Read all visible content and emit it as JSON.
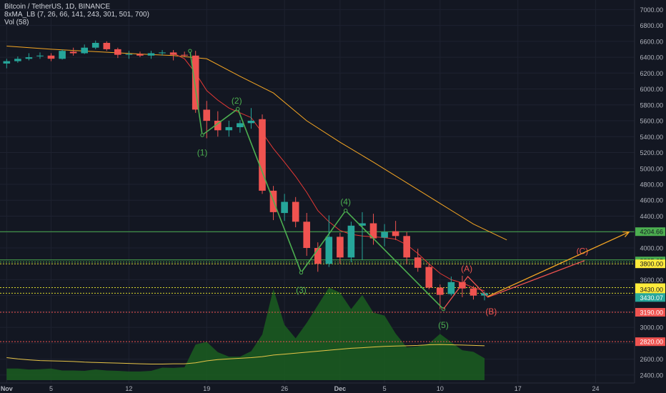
{
  "header": {
    "symbol_line": "Bitcoin / TetherUS, 1D, BINANCE",
    "ma_line": "8xMA_LB (7, 26, 66, 141, 243, 301, 501, 700)",
    "vol_line": "Vol (58)"
  },
  "colors": {
    "background": "#131722",
    "grid": "#1e2230",
    "up": "#26a69a",
    "down": "#ef5350",
    "wave": "#4caf50",
    "ma_fast": "#e53935",
    "ma_slow": "#f5a623",
    "volume_fill": "#1b5e20",
    "volume_ma": "#e8c547",
    "projection": "#f5a623"
  },
  "chart_data": {
    "type": "candlestick",
    "y_axis": {
      "range": [
        2300,
        7120
      ],
      "ticks": [
        "7000.00",
        "6800.00",
        "6600.00",
        "6400.00",
        "6200.00",
        "6000.00",
        "5800.00",
        "5600.00",
        "5400.00",
        "5200.00",
        "5000.00",
        "4800.00",
        "4600.00",
        "4400.00",
        "4200.00",
        "4000.00",
        "3800.00",
        "3600.00",
        "3400.00",
        "3200.00",
        "3000.00",
        "2800.00",
        "2600.00",
        "2400.00"
      ],
      "tick_values": [
        7000,
        6800,
        6600,
        6400,
        6200,
        6000,
        5800,
        5600,
        5400,
        5200,
        5000,
        4800,
        4600,
        4400,
        4200,
        4000,
        3800,
        3600,
        3400,
        3200,
        3000,
        2800,
        2600,
        2400
      ]
    },
    "x_axis": {
      "labels": [
        "Nov",
        "5",
        "12",
        "19",
        "26",
        "Dec",
        "5",
        "10",
        "17",
        "24"
      ],
      "label_days": [
        0,
        4,
        11,
        18,
        25,
        30,
        34,
        39,
        46,
        53
      ],
      "day_range": [
        -0.6,
        56.5
      ]
    },
    "candles": [
      {
        "d": 0,
        "o": 6320,
        "h": 6380,
        "l": 6260,
        "c": 6350
      },
      {
        "d": 1,
        "o": 6350,
        "h": 6410,
        "l": 6330,
        "c": 6380
      },
      {
        "d": 2,
        "o": 6380,
        "h": 6450,
        "l": 6360,
        "c": 6400
      },
      {
        "d": 3,
        "o": 6410,
        "h": 6460,
        "l": 6380,
        "c": 6420
      },
      {
        "d": 4,
        "o": 6420,
        "h": 6450,
        "l": 6350,
        "c": 6380
      },
      {
        "d": 5,
        "o": 6380,
        "h": 6500,
        "l": 6370,
        "c": 6480
      },
      {
        "d": 6,
        "o": 6470,
        "h": 6520,
        "l": 6420,
        "c": 6450
      },
      {
        "d": 7,
        "o": 6450,
        "h": 6560,
        "l": 6440,
        "c": 6520
      },
      {
        "d": 8,
        "o": 6520,
        "h": 6610,
        "l": 6500,
        "c": 6580
      },
      {
        "d": 9,
        "o": 6580,
        "h": 6600,
        "l": 6480,
        "c": 6500
      },
      {
        "d": 10,
        "o": 6500,
        "h": 6520,
        "l": 6390,
        "c": 6430
      },
      {
        "d": 11,
        "o": 6430,
        "h": 6480,
        "l": 6380,
        "c": 6440
      },
      {
        "d": 12,
        "o": 6440,
        "h": 6470,
        "l": 6400,
        "c": 6420
      },
      {
        "d": 13,
        "o": 6420,
        "h": 6480,
        "l": 6380,
        "c": 6450
      },
      {
        "d": 14,
        "o": 6450,
        "h": 6490,
        "l": 6420,
        "c": 6460
      },
      {
        "d": 15,
        "o": 6460,
        "h": 6490,
        "l": 6360,
        "c": 6430
      },
      {
        "d": 16,
        "o": 6430,
        "h": 6470,
        "l": 6400,
        "c": 6420
      },
      {
        "d": 17,
        "o": 6420,
        "h": 6480,
        "l": 5700,
        "c": 5740
      },
      {
        "d": 18,
        "o": 5740,
        "h": 5850,
        "l": 5380,
        "c": 5600
      },
      {
        "d": 19,
        "o": 5600,
        "h": 5720,
        "l": 5400,
        "c": 5480
      },
      {
        "d": 20,
        "o": 5480,
        "h": 5600,
        "l": 5400,
        "c": 5520
      },
      {
        "d": 21,
        "o": 5520,
        "h": 5610,
        "l": 5450,
        "c": 5570
      },
      {
        "d": 22,
        "o": 5570,
        "h": 5760,
        "l": 5500,
        "c": 5600
      },
      {
        "d": 23,
        "o": 5620,
        "h": 5680,
        "l": 4680,
        "c": 4720
      },
      {
        "d": 24,
        "o": 4720,
        "h": 4780,
        "l": 4350,
        "c": 4450
      },
      {
        "d": 25,
        "o": 4440,
        "h": 4680,
        "l": 4340,
        "c": 4580
      },
      {
        "d": 26,
        "o": 4580,
        "h": 4640,
        "l": 4260,
        "c": 4330
      },
      {
        "d": 27,
        "o": 4330,
        "h": 4440,
        "l": 3900,
        "c": 4000
      },
      {
        "d": 28,
        "o": 4000,
        "h": 4070,
        "l": 3700,
        "c": 3800
      },
      {
        "d": 29,
        "o": 3800,
        "h": 4410,
        "l": 3760,
        "c": 4140
      },
      {
        "d": 30,
        "o": 4140,
        "h": 4190,
        "l": 3800,
        "c": 3880
      },
      {
        "d": 31,
        "o": 3880,
        "h": 4330,
        "l": 3820,
        "c": 4280
      },
      {
        "d": 32,
        "o": 4280,
        "h": 4450,
        "l": 3850,
        "c": 4310
      },
      {
        "d": 33,
        "o": 4310,
        "h": 4430,
        "l": 4040,
        "c": 4120
      },
      {
        "d": 34,
        "o": 4130,
        "h": 4300,
        "l": 4020,
        "c": 4200
      },
      {
        "d": 35,
        "o": 4210,
        "h": 4340,
        "l": 4100,
        "c": 4150
      },
      {
        "d": 36,
        "o": 4150,
        "h": 4200,
        "l": 3800,
        "c": 3880
      },
      {
        "d": 37,
        "o": 3880,
        "h": 3990,
        "l": 3700,
        "c": 3750
      },
      {
        "d": 38,
        "o": 3760,
        "h": 3800,
        "l": 3480,
        "c": 3500
      },
      {
        "d": 39,
        "o": 3500,
        "h": 3540,
        "l": 3230,
        "c": 3410
      },
      {
        "d": 40,
        "o": 3420,
        "h": 3640,
        "l": 3400,
        "c": 3570
      },
      {
        "d": 41,
        "o": 3570,
        "h": 3650,
        "l": 3380,
        "c": 3490
      },
      {
        "d": 42,
        "o": 3490,
        "h": 3520,
        "l": 3350,
        "c": 3400
      },
      {
        "d": 43,
        "o": 3400,
        "h": 3450,
        "l": 3340,
        "c": 3430
      }
    ],
    "volume": {
      "scale_max": 3000,
      "values": [
        360,
        360,
        330,
        340,
        360,
        300,
        300,
        290,
        330,
        300,
        290,
        270,
        270,
        290,
        390,
        380,
        400,
        1110,
        1190,
        870,
        730,
        730,
        900,
        1420,
        2840,
        1720,
        1300,
        1780,
        2330,
        2880,
        2720,
        2210,
        2650,
        2100,
        2010,
        1450,
        1020,
        1050,
        1140,
        1440,
        1180,
        930,
        880,
        680
      ],
      "ma_values": [
        700,
        660,
        630,
        610,
        600,
        590,
        580,
        560,
        550,
        540,
        530,
        520,
        510,
        500,
        500,
        510,
        510,
        540,
        600,
        640,
        660,
        680,
        700,
        730,
        780,
        810,
        840,
        870,
        900,
        930,
        960,
        990,
        1010,
        1030,
        1050,
        1060,
        1070,
        1080,
        1100,
        1110,
        1100,
        1090,
        1080,
        1070
      ]
    },
    "ma_fast": [
      {
        "d": 15,
        "v": 6450
      },
      {
        "d": 16,
        "v": 6380
      },
      {
        "d": 17,
        "v": 6200
      },
      {
        "d": 18,
        "v": 5980
      },
      {
        "d": 19,
        "v": 5860
      },
      {
        "d": 20,
        "v": 5760
      },
      {
        "d": 21,
        "v": 5700
      },
      {
        "d": 22,
        "v": 5640
      },
      {
        "d": 23,
        "v": 5450
      },
      {
        "d": 24,
        "v": 5250
      },
      {
        "d": 25,
        "v": 5080
      },
      {
        "d": 26,
        "v": 4900
      },
      {
        "d": 27,
        "v": 4700
      },
      {
        "d": 28,
        "v": 4470
      },
      {
        "d": 29,
        "v": 4330
      },
      {
        "d": 30,
        "v": 4220
      },
      {
        "d": 31,
        "v": 4170
      },
      {
        "d": 32,
        "v": 4150
      },
      {
        "d": 33,
        "v": 4140
      },
      {
        "d": 34,
        "v": 4130
      },
      {
        "d": 35,
        "v": 4110
      },
      {
        "d": 36,
        "v": 4040
      },
      {
        "d": 37,
        "v": 3930
      },
      {
        "d": 38,
        "v": 3800
      },
      {
        "d": 39,
        "v": 3680
      },
      {
        "d": 40,
        "v": 3600
      },
      {
        "d": 41,
        "v": 3560
      },
      {
        "d": 42,
        "v": 3500
      },
      {
        "d": 43,
        "v": 3460
      }
    ],
    "ma_slow": [
      {
        "d": 0,
        "v": 6540
      },
      {
        "d": 4,
        "v": 6500
      },
      {
        "d": 8,
        "v": 6470
      },
      {
        "d": 12,
        "v": 6440
      },
      {
        "d": 15,
        "v": 6420
      },
      {
        "d": 18,
        "v": 6380
      },
      {
        "d": 21,
        "v": 6160
      },
      {
        "d": 24,
        "v": 5950
      },
      {
        "d": 27,
        "v": 5600
      },
      {
        "d": 30,
        "v": 5330
      },
      {
        "d": 33,
        "v": 5080
      },
      {
        "d": 36,
        "v": 4820
      },
      {
        "d": 39,
        "v": 4560
      },
      {
        "d": 42,
        "v": 4300
      },
      {
        "d": 45,
        "v": 4100
      }
    ],
    "wave": {
      "points": [
        {
          "d": 16.5,
          "v": 6480
        },
        {
          "d": 17.6,
          "v": 5420
        },
        {
          "d": 20.8,
          "v": 5750
        },
        {
          "d": 26.5,
          "v": 3690
        },
        {
          "d": 30.5,
          "v": 4470
        },
        {
          "d": 39.3,
          "v": 3230
        }
      ],
      "labels": [
        {
          "text": "(1)",
          "d": 17.6,
          "v": 5200
        },
        {
          "text": "(2)",
          "d": 20.7,
          "v": 5850
        },
        {
          "text": "(3)",
          "d": 26.5,
          "v": 3470
        },
        {
          "text": "(4)",
          "d": 30.5,
          "v": 4580
        },
        {
          "text": "(5)",
          "d": 39.3,
          "v": 3030
        }
      ]
    },
    "correction": {
      "points": [
        {
          "d": 39.3,
          "v": 3230
        },
        {
          "d": 41.5,
          "v": 3640
        },
        {
          "d": 43.3,
          "v": 3380
        },
        {
          "d": 52.0,
          "v": 3840
        }
      ],
      "labels": [
        {
          "text": "(A)",
          "d": 41.4,
          "v": 3740
        },
        {
          "text": "(B)",
          "d": 43.6,
          "v": 3200
        },
        {
          "text": "(C)",
          "d": 51.8,
          "v": 3960
        }
      ]
    },
    "projection": {
      "from": {
        "d": 43.3,
        "v": 3390
      },
      "to": {
        "d": 56.0,
        "v": 4200
      }
    },
    "levels": [
      {
        "value": 4204.66,
        "label": "4204.66",
        "style": "solid",
        "color": "#4caf50",
        "bg": "#4caf50",
        "fg": "#131722"
      },
      {
        "value": 3835.68,
        "label": "3835.68",
        "style": "double",
        "color": "#4caf50",
        "bg": "#4caf50",
        "fg": "#131722"
      },
      {
        "value": 3800.0,
        "label": "3800.00",
        "style": "dotted",
        "color": "#d8d62c",
        "bg": "#ffeb3b",
        "fg": "#131722"
      },
      {
        "value": 3500.0,
        "label": "3500.00",
        "style": "dotted",
        "color": "#d8d62c",
        "bg": "#ffeb3b",
        "fg": "#131722"
      },
      {
        "value": 3430.0,
        "label": "3430.00",
        "style": "dotted",
        "color": "#d8d62c",
        "bg": "#ffeb3b",
        "fg": "#131722"
      },
      {
        "value": 3430.07,
        "label": "3430.07",
        "style": "none",
        "color": "#26a69a",
        "bg": "#26a69a",
        "fg": "#ffffff"
      },
      {
        "value": 3190.0,
        "label": "3190.00",
        "style": "dotted",
        "color": "#ef5350",
        "bg": "#ef5350",
        "fg": "#ffffff"
      },
      {
        "value": 2820.0,
        "label": "2820.00",
        "style": "dotted",
        "color": "#ef5350",
        "bg": "#ef5350",
        "fg": "#ffffff"
      }
    ]
  }
}
